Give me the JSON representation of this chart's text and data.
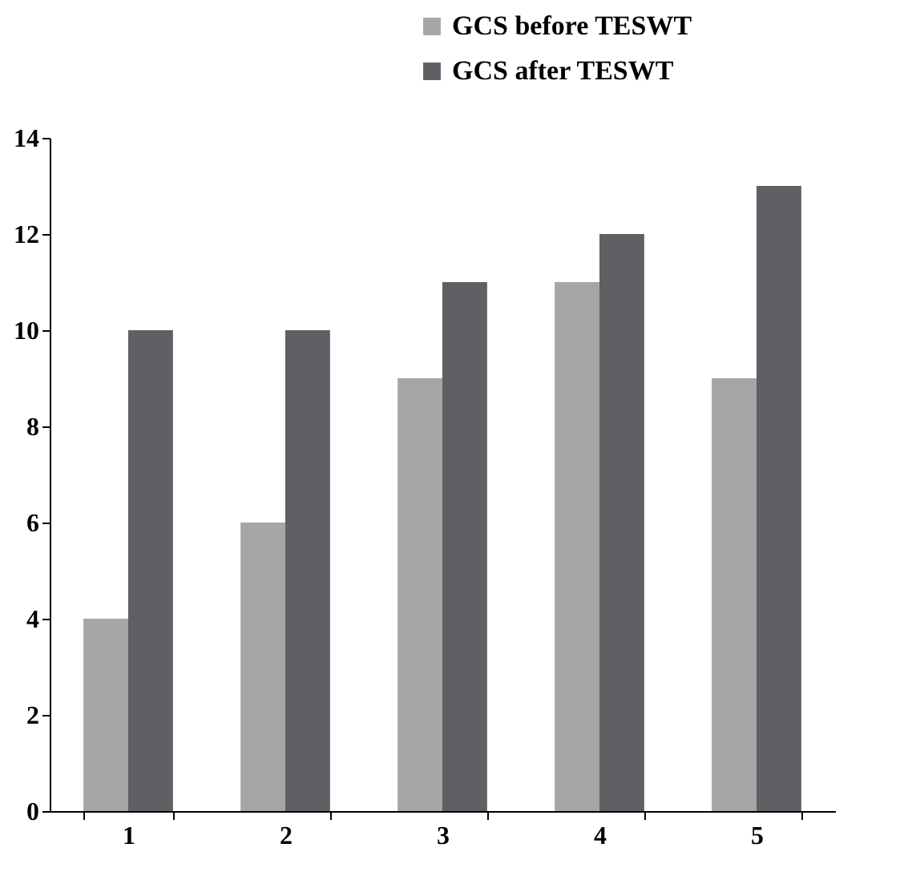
{
  "chart_data": {
    "type": "bar",
    "categories": [
      "1",
      "2",
      "3",
      "4",
      "5"
    ],
    "series": [
      {
        "name": "GCS before TESWT",
        "color": "#a6a6a6",
        "values": [
          4,
          6,
          9,
          11,
          9
        ]
      },
      {
        "name": "GCS after TESWT",
        "color": "#5f6064",
        "values": [
          10,
          10,
          11,
          12,
          13
        ]
      }
    ],
    "ylim": [
      0,
      14
    ],
    "yticks": [
      0,
      2,
      4,
      6,
      8,
      10,
      12,
      14
    ],
    "grid": false,
    "legend": "top right"
  }
}
